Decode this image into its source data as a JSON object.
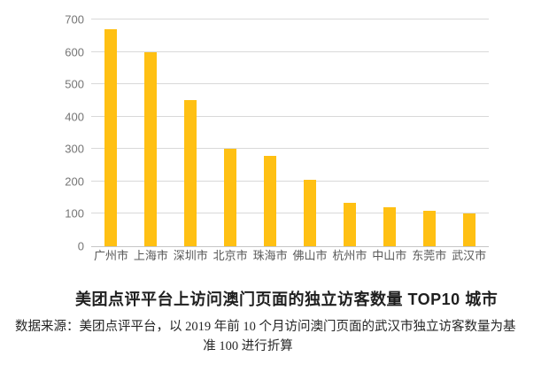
{
  "chart_data": {
    "type": "bar",
    "categories": [
      "广州市",
      "上海市",
      "深圳市",
      "北京市",
      "珠海市",
      "佛山市",
      "杭州市",
      "中山市",
      "东莞市",
      "武汉市"
    ],
    "values": [
      670,
      600,
      450,
      300,
      280,
      205,
      135,
      120,
      110,
      100
    ],
    "title": "美团点评平台上访问澳门页面的独立访客数量 TOP10 城市",
    "xlabel": "",
    "ylabel": "",
    "ylim": [
      0,
      700
    ],
    "yticks": [
      0,
      100,
      200,
      300,
      400,
      500,
      600,
      700
    ],
    "grid": true,
    "legend_position": "none",
    "bar_color": "#FFC013"
  },
  "source_note": {
    "line1": "数据来源：美团点评平台，以 2019 年前 10 个月访问澳门页面的武汉市独立访客数量为基",
    "line2": "准 100 进行折算"
  },
  "colors": {
    "bar": "#FFC013",
    "gridline": "#d9d9d9",
    "axis_line": "#c6c6c6",
    "y_label_text": "#757575",
    "x_label_text": "#595959",
    "title_text": "#1f1f1f",
    "source_text": "#262626",
    "background": "#ffffff"
  }
}
